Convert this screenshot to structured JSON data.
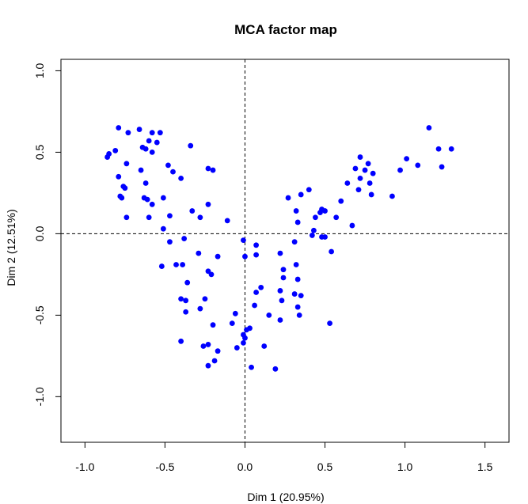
{
  "chart_data": {
    "type": "scatter",
    "title": "MCA factor map",
    "xlabel": "Dim 1 (20.95%)",
    "ylabel": "Dim 2 (12.51%)",
    "xlim": [
      -1.15,
      1.65
    ],
    "ylim": [
      -1.28,
      1.07
    ],
    "xticks": [
      -1.0,
      -0.5,
      0.0,
      0.5,
      1.0,
      1.5
    ],
    "xtick_labels": [
      "-1.0",
      "-0.5",
      "0.0",
      "0.5",
      "1.0",
      "1.5"
    ],
    "yticks": [
      -1.0,
      -0.5,
      0.0,
      0.5,
      1.0
    ],
    "ytick_labels": [
      "-1.0",
      "-0.5",
      "0.0",
      "0.5",
      "1.0"
    ],
    "reference_lines": {
      "x": 0,
      "y": 0,
      "style": "dashed"
    },
    "grid": false,
    "point_color": "#0000ff",
    "points": [
      [
        -0.79,
        0.65
      ],
      [
        -0.66,
        0.64
      ],
      [
        -0.73,
        0.62
      ],
      [
        -0.58,
        0.62
      ],
      [
        -0.53,
        0.62
      ],
      [
        -0.6,
        0.57
      ],
      [
        -0.55,
        0.56
      ],
      [
        -0.64,
        0.53
      ],
      [
        -0.62,
        0.52
      ],
      [
        -0.81,
        0.51
      ],
      [
        -0.58,
        0.5
      ],
      [
        -0.85,
        0.49
      ],
      [
        -0.86,
        0.47
      ],
      [
        -0.34,
        0.54
      ],
      [
        -0.74,
        0.43
      ],
      [
        -0.48,
        0.42
      ],
      [
        -0.65,
        0.39
      ],
      [
        -0.45,
        0.38
      ],
      [
        -0.79,
        0.35
      ],
      [
        -0.4,
        0.34
      ],
      [
        -0.23,
        0.4
      ],
      [
        -0.2,
        0.39
      ],
      [
        -0.62,
        0.31
      ],
      [
        -0.76,
        0.29
      ],
      [
        -0.75,
        0.28
      ],
      [
        -0.78,
        0.23
      ],
      [
        -0.77,
        0.22
      ],
      [
        -0.63,
        0.22
      ],
      [
        -0.61,
        0.21
      ],
      [
        -0.51,
        0.22
      ],
      [
        -0.58,
        0.18
      ],
      [
        -0.23,
        0.18
      ],
      [
        -0.74,
        0.1
      ],
      [
        -0.6,
        0.1
      ],
      [
        -0.47,
        0.11
      ],
      [
        -0.33,
        0.14
      ],
      [
        -0.28,
        0.1
      ],
      [
        -0.11,
        0.08
      ],
      [
        -0.51,
        0.03
      ],
      [
        -0.38,
        -0.03
      ],
      [
        -0.47,
        -0.05
      ],
      [
        -0.01,
        -0.04
      ],
      [
        0.07,
        -0.07
      ],
      [
        0.07,
        -0.13
      ],
      [
        -0.43,
        -0.19
      ],
      [
        -0.52,
        -0.2
      ],
      [
        -0.39,
        -0.19
      ],
      [
        -0.29,
        -0.12
      ],
      [
        -0.17,
        -0.14
      ],
      [
        0.22,
        -0.12
      ],
      [
        0.32,
        -0.19
      ],
      [
        0.24,
        -0.22
      ],
      [
        0.24,
        -0.27
      ],
      [
        -0.23,
        -0.23
      ],
      [
        -0.21,
        -0.25
      ],
      [
        -0.36,
        -0.3
      ],
      [
        0.0,
        -0.14
      ],
      [
        0.33,
        -0.28
      ],
      [
        0.1,
        -0.33
      ],
      [
        0.07,
        -0.36
      ],
      [
        0.22,
        -0.35
      ],
      [
        0.31,
        -0.37
      ],
      [
        0.35,
        -0.38
      ],
      [
        0.33,
        -0.45
      ],
      [
        -0.4,
        -0.4
      ],
      [
        -0.37,
        -0.41
      ],
      [
        -0.25,
        -0.4
      ],
      [
        0.23,
        -0.41
      ],
      [
        -0.37,
        -0.48
      ],
      [
        -0.28,
        -0.46
      ],
      [
        0.06,
        -0.44
      ],
      [
        0.15,
        -0.5
      ],
      [
        0.34,
        -0.5
      ],
      [
        -0.06,
        -0.49
      ],
      [
        -0.2,
        -0.56
      ],
      [
        -0.08,
        -0.55
      ],
      [
        0.53,
        -0.55
      ],
      [
        0.01,
        -0.59
      ],
      [
        0.03,
        -0.58
      ],
      [
        0.22,
        -0.53
      ],
      [
        -0.01,
        -0.62
      ],
      [
        0.0,
        -0.64
      ],
      [
        -0.4,
        -0.66
      ],
      [
        -0.26,
        -0.69
      ],
      [
        -0.23,
        -0.68
      ],
      [
        -0.05,
        -0.7
      ],
      [
        -0.01,
        -0.67
      ],
      [
        0.12,
        -0.69
      ],
      [
        -0.17,
        -0.72
      ],
      [
        -0.19,
        -0.78
      ],
      [
        -0.23,
        -0.81
      ],
      [
        0.04,
        -0.82
      ],
      [
        0.19,
        -0.83
      ],
      [
        0.27,
        0.22
      ],
      [
        0.35,
        0.24
      ],
      [
        0.4,
        0.27
      ],
      [
        0.32,
        0.14
      ],
      [
        0.33,
        0.07
      ],
      [
        0.48,
        0.15
      ],
      [
        0.47,
        0.13
      ],
      [
        0.5,
        0.14
      ],
      [
        0.44,
        0.1
      ],
      [
        0.57,
        0.1
      ],
      [
        0.6,
        0.2
      ],
      [
        0.64,
        0.31
      ],
      [
        0.69,
        0.4
      ],
      [
        0.72,
        0.47
      ],
      [
        0.77,
        0.43
      ],
      [
        0.75,
        0.39
      ],
      [
        0.78,
        0.31
      ],
      [
        0.72,
        0.34
      ],
      [
        0.71,
        0.27
      ],
      [
        0.79,
        0.24
      ],
      [
        0.8,
        0.37
      ],
      [
        0.67,
        0.05
      ],
      [
        0.43,
        0.02
      ],
      [
        0.42,
        -0.01
      ],
      [
        0.48,
        -0.02
      ],
      [
        0.5,
        -0.02
      ],
      [
        0.54,
        -0.11
      ],
      [
        0.31,
        -0.05
      ],
      [
        0.92,
        0.23
      ],
      [
        0.97,
        0.39
      ],
      [
        1.01,
        0.46
      ],
      [
        1.08,
        0.42
      ],
      [
        1.15,
        0.65
      ],
      [
        1.21,
        0.52
      ],
      [
        1.23,
        0.41
      ],
      [
        1.29,
        0.52
      ]
    ]
  }
}
